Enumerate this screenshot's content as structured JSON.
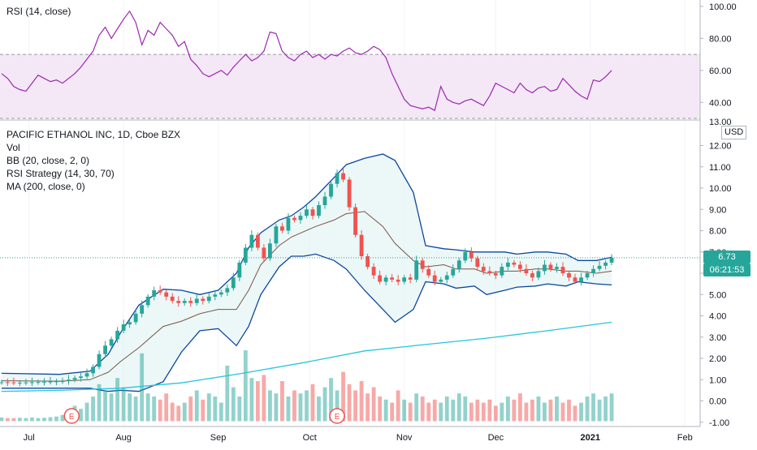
{
  "rsi_pane": {
    "legend": "RSI (14, close)",
    "y_ticks": [
      "100.00",
      "80.00",
      "60.00",
      "40.00"
    ],
    "band": {
      "upper": 70,
      "lower": 30
    },
    "ylim": [
      29,
      104
    ],
    "series_color": "#9c27b0",
    "band_color": "#e1bee7"
  },
  "price_pane": {
    "legend": [
      "PACIFIC ETHANOL INC, 1D, Cboe BZX",
      "Vol",
      "BB (20, close, 2, 0)",
      "RSI Strategy (14, 30, 70)",
      "MA (200, close, 0)"
    ],
    "y_ticks": [
      "12.00",
      "11.00",
      "10.00",
      "9.00",
      "8.00",
      "7.00",
      "6.00",
      "5.00",
      "4.00",
      "3.00",
      "2.00",
      "1.00",
      "0.00",
      "-1.00"
    ],
    "top_clipped_tick": "13.00",
    "ylim": [
      -1.2,
      13.2
    ],
    "currency": "USD",
    "last_price": "6.73",
    "countdown": "06:21:53",
    "up_color": "#26a69a",
    "down_color": "#ef5350",
    "bb_color": "#0d47a1",
    "bb_fill": "#e0f2f1",
    "ma_color": "#26c6da",
    "basis_color": "#795548",
    "earnings_label": "E"
  },
  "x_axis": {
    "labels": [
      {
        "label": "Jul",
        "day": 0
      },
      {
        "label": "Aug",
        "day": 31
      },
      {
        "label": "Sep",
        "day": 62
      },
      {
        "label": "Oct",
        "day": 92
      },
      {
        "label": "Nov",
        "day": 123
      },
      {
        "label": "Dec",
        "day": 153
      },
      {
        "label": "2021",
        "day": 184
      },
      {
        "label": "Feb",
        "day": 215
      }
    ],
    "xlim": [
      -9.5,
      220
    ]
  },
  "chart_data": [
    {
      "type": "line",
      "ylim": [
        29,
        104
      ],
      "series": [
        {
          "name": "RSI (14, close)",
          "x": [
            -9,
            -7,
            -5,
            -3,
            -1,
            1,
            3,
            5,
            7,
            9,
            11,
            13,
            15,
            17,
            19,
            21,
            23,
            25,
            27,
            29,
            31,
            33,
            35,
            37,
            39,
            41,
            43,
            45,
            47,
            49,
            51,
            53,
            55,
            57,
            59,
            61,
            63,
            65,
            67,
            69,
            71,
            73,
            75,
            77,
            79,
            81,
            83,
            85,
            87,
            89,
            91,
            93,
            95,
            97,
            99,
            101,
            103,
            105,
            107,
            109,
            111,
            113,
            115,
            117,
            119,
            121,
            123,
            125,
            127,
            129,
            131,
            133,
            135,
            137,
            139,
            141,
            143,
            145,
            147,
            149,
            151,
            153,
            155,
            157,
            159,
            161,
            163,
            165,
            167,
            169,
            171,
            173,
            175,
            177,
            179,
            181,
            183,
            185,
            187,
            189,
            191
          ],
          "values": [
            58,
            55,
            50,
            48,
            47,
            52,
            57,
            55,
            53,
            54,
            52,
            55,
            58,
            62,
            67,
            72,
            82,
            87,
            80,
            86,
            92,
            97,
            90,
            76,
            85,
            82,
            90,
            86,
            82,
            75,
            78,
            67,
            63,
            58,
            56,
            58,
            60,
            57,
            62,
            66,
            70,
            66,
            68,
            72,
            84,
            83,
            72,
            68,
            66,
            70,
            72,
            68,
            70,
            67,
            70,
            69,
            72,
            74,
            71,
            70,
            72,
            75,
            73,
            68,
            58,
            50,
            42,
            38,
            37,
            36,
            37,
            35,
            50,
            42,
            40,
            39,
            41,
            42,
            40,
            38,
            44,
            52,
            50,
            48,
            46,
            52,
            48,
            46,
            49,
            50,
            47,
            48,
            55,
            51,
            47,
            44,
            42,
            54,
            53,
            56,
            60
          ]
        }
      ]
    },
    {
      "type": "candlestick",
      "ylim": [
        -1.2,
        13.2
      ],
      "series": [
        {
          "name": "PACIFIC ETHANOL INC",
          "x": [
            -9,
            -7,
            -5,
            -3,
            -1,
            1,
            3,
            5,
            7,
            9,
            11,
            13,
            15,
            17,
            19,
            21,
            23,
            25,
            27,
            29,
            31,
            33,
            35,
            37,
            39,
            41,
            43,
            45,
            47,
            49,
            51,
            53,
            55,
            57,
            59,
            61,
            63,
            65,
            67,
            69,
            71,
            73,
            75,
            77,
            79,
            81,
            83,
            85,
            87,
            89,
            91,
            93,
            95,
            97,
            99,
            101,
            103,
            105,
            107,
            109,
            111,
            113,
            115,
            117,
            119,
            121,
            123,
            125,
            127,
            129,
            131,
            133,
            135,
            137,
            139,
            141,
            143,
            145,
            147,
            149,
            151,
            153,
            155,
            157,
            159,
            161,
            163,
            165,
            167,
            169,
            171,
            173,
            175,
            177,
            179,
            181,
            183,
            185,
            187,
            189,
            191
          ],
          "close": [
            0.88,
            0.87,
            0.86,
            0.86,
            0.87,
            0.88,
            0.89,
            0.9,
            0.91,
            0.92,
            0.93,
            1.0,
            1.08,
            1.15,
            1.3,
            1.6,
            2.2,
            2.6,
            2.9,
            3.3,
            3.6,
            3.7,
            4.1,
            4.5,
            4.9,
            5.2,
            5.1,
            4.9,
            4.7,
            4.6,
            4.7,
            4.6,
            4.8,
            4.7,
            4.9,
            5.0,
            5.1,
            5.3,
            5.8,
            6.5,
            7.2,
            7.8,
            7.2,
            6.7,
            7.4,
            8.2,
            8.0,
            8.6,
            8.5,
            8.7,
            9.0,
            8.7,
            9.2,
            9.6,
            10.2,
            10.7,
            10.4,
            9.1,
            7.8,
            6.8,
            6.3,
            5.9,
            5.6,
            5.8,
            5.7,
            5.6,
            5.8,
            5.7,
            6.6,
            6.2,
            5.9,
            5.6,
            5.7,
            5.9,
            6.2,
            6.6,
            7.0,
            6.7,
            6.3,
            6.1,
            6.0,
            5.9,
            6.3,
            6.5,
            6.4,
            6.2,
            6.0,
            5.8,
            6.1,
            6.4,
            6.2,
            6.3,
            6.0,
            5.8,
            5.6,
            5.8,
            6.0,
            6.2,
            6.35,
            6.5,
            6.73
          ],
          "volume": [
            0.12,
            0.1,
            0.1,
            0.11,
            0.1,
            0.12,
            0.1,
            0.11,
            0.13,
            0.15,
            0.2,
            0.3,
            0.5,
            0.4,
            0.6,
            0.8,
            1.2,
            1.0,
            0.9,
            1.4,
            1.1,
            0.9,
            0.8,
            2.2,
            0.9,
            0.8,
            0.7,
            0.9,
            0.6,
            0.5,
            0.6,
            0.8,
            1.0,
            0.7,
            0.9,
            0.8,
            0.6,
            1.8,
            1.1,
            0.8,
            2.3,
            1.4,
            1.3,
            1.5,
            1.0,
            0.9,
            1.3,
            0.8,
            1.0,
            0.9,
            1.0,
            1.2,
            0.8,
            1.1,
            1.4,
            1.0,
            1.6,
            1.2,
            1.0,
            1.3,
            0.9,
            1.1,
            0.8,
            0.7,
            0.6,
            1.0,
            0.7,
            0.6,
            0.9,
            0.8,
            0.6,
            0.7,
            0.6,
            0.8,
            0.7,
            0.9,
            0.8,
            0.6,
            0.7,
            0.6,
            0.7,
            0.5,
            0.6,
            0.8,
            0.7,
            0.9,
            0.6,
            0.7,
            0.8,
            0.6,
            0.7,
            0.8,
            0.6,
            0.7,
            0.5,
            0.6,
            0.8,
            0.9,
            0.7,
            0.8,
            0.9
          ]
        },
        {
          "name": "MA (200, close, 0)",
          "x": [
            -9,
            10,
            30,
            50,
            70,
            90,
            110,
            130,
            150,
            170,
            191
          ],
          "values": [
            0.45,
            0.5,
            0.6,
            0.85,
            1.3,
            1.8,
            2.35,
            2.65,
            2.95,
            3.3,
            3.7
          ]
        },
        {
          "name": "BB upper",
          "x": [
            -9,
            10,
            20,
            26,
            30,
            36,
            44,
            50,
            56,
            62,
            68,
            72,
            76,
            82,
            86,
            90,
            94,
            100,
            104,
            110,
            116,
            120,
            126,
            130,
            136,
            140,
            146,
            150,
            156,
            160,
            166,
            170,
            176,
            180,
            186,
            191
          ],
          "values": [
            1.3,
            1.25,
            1.4,
            2.2,
            3.2,
            4.5,
            5.25,
            5.2,
            5.0,
            5.2,
            6.0,
            7.2,
            7.9,
            8.5,
            8.7,
            9.1,
            9.6,
            10.5,
            11.1,
            11.4,
            11.6,
            11.3,
            9.8,
            7.3,
            7.15,
            7.1,
            7.0,
            7.0,
            7.0,
            6.9,
            7.0,
            7.0,
            6.9,
            6.6,
            6.6,
            6.75
          ]
        },
        {
          "name": "BB lower",
          "x": [
            -9,
            10,
            20,
            26,
            30,
            36,
            44,
            50,
            56,
            62,
            68,
            72,
            76,
            82,
            86,
            90,
            94,
            100,
            104,
            110,
            116,
            120,
            126,
            130,
            136,
            140,
            146,
            150,
            156,
            160,
            166,
            170,
            176,
            180,
            186,
            191
          ],
          "values": [
            0.6,
            0.6,
            0.6,
            0.45,
            0.5,
            0.45,
            0.9,
            2.3,
            3.3,
            3.4,
            2.6,
            3.5,
            5.0,
            6.3,
            6.8,
            6.8,
            6.9,
            6.6,
            6.2,
            5.2,
            4.3,
            3.7,
            4.3,
            5.6,
            5.5,
            5.3,
            5.4,
            5.0,
            5.2,
            5.35,
            5.4,
            5.5,
            5.4,
            5.6,
            5.5,
            5.45
          ]
        },
        {
          "name": "BB basis",
          "x": [
            -9,
            10,
            20,
            26,
            30,
            36,
            44,
            50,
            56,
            62,
            68,
            72,
            76,
            82,
            86,
            90,
            94,
            100,
            104,
            110,
            116,
            120,
            126,
            130,
            136,
            140,
            146,
            150,
            156,
            160,
            166,
            170,
            176,
            180,
            186,
            191
          ],
          "values": [
            0.95,
            0.93,
            1.0,
            1.35,
            1.85,
            2.5,
            3.5,
            3.75,
            4.1,
            4.3,
            4.3,
            5.2,
            6.4,
            7.3,
            7.7,
            7.95,
            8.2,
            8.5,
            8.8,
            8.9,
            8.2,
            7.4,
            6.6,
            6.3,
            6.4,
            6.2,
            6.2,
            6.0,
            6.1,
            6.1,
            6.2,
            6.2,
            6.1,
            6.1,
            6.0,
            6.1
          ]
        }
      ]
    }
  ]
}
